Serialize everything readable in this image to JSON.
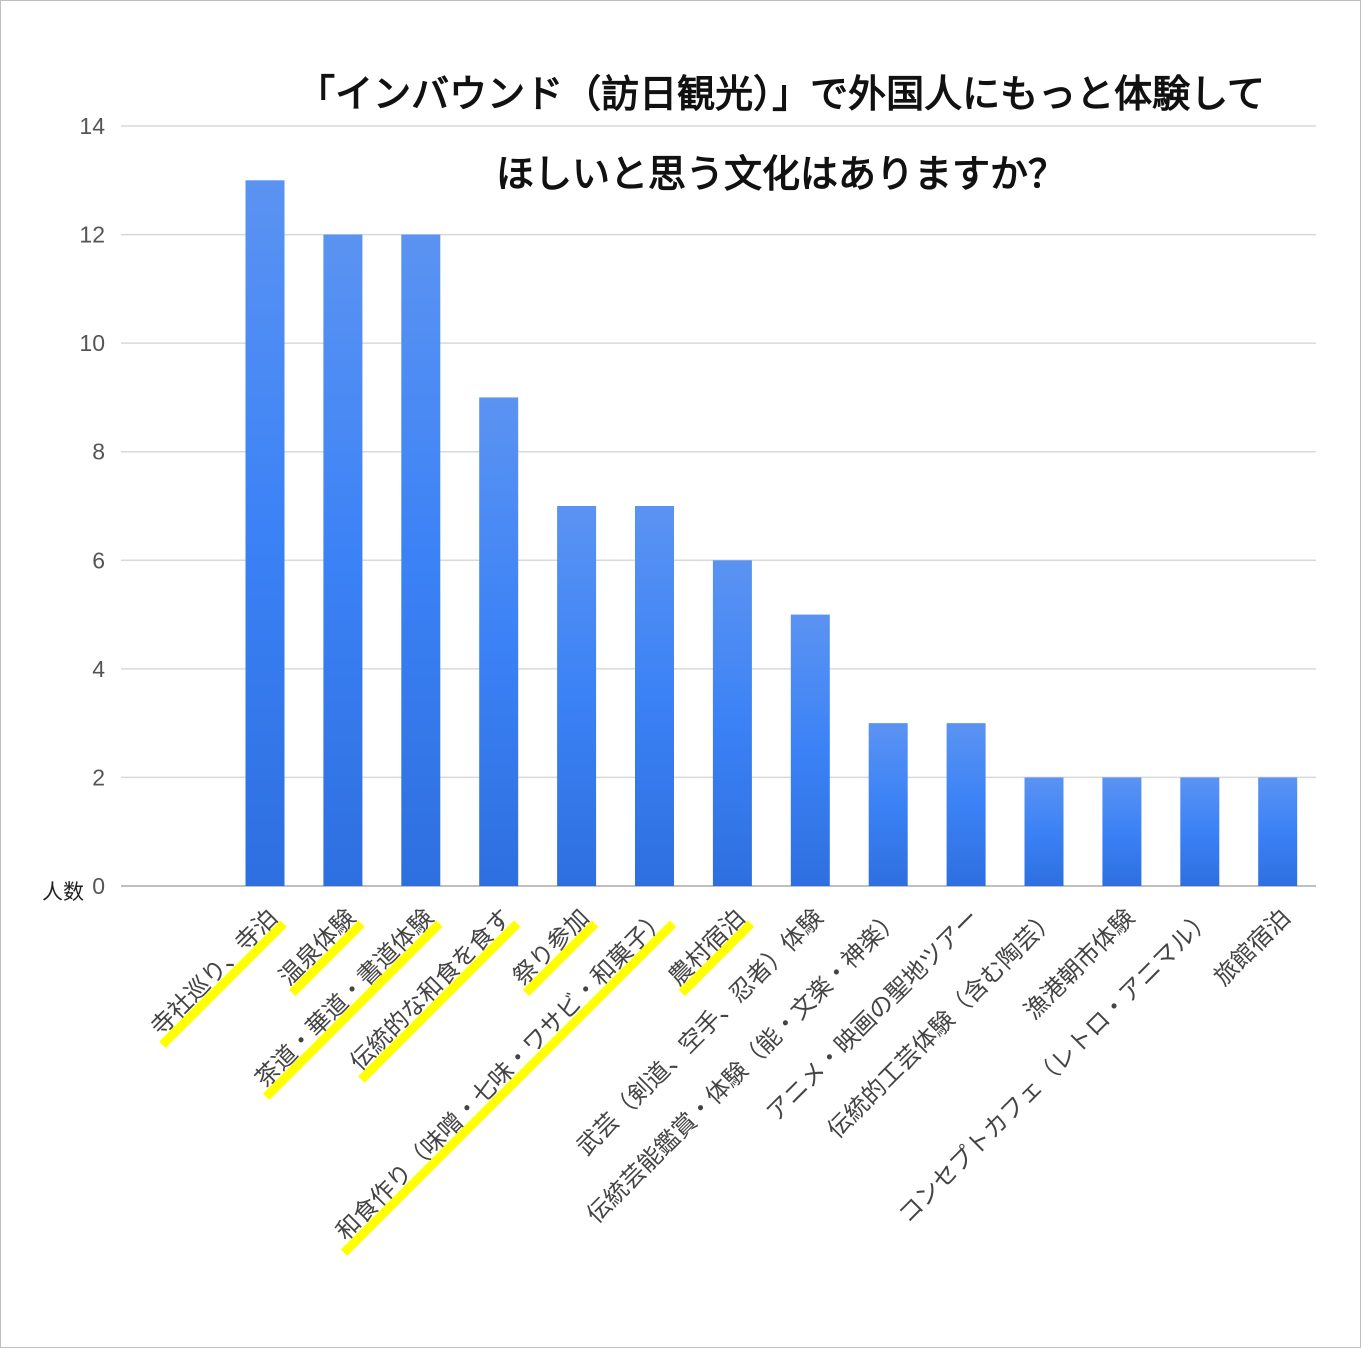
{
  "title": {
    "line1": "「インバウンド（訪日観光）」で外国人にもっと体験して",
    "line2": "ほしいと思う文化はありますか？"
  },
  "chart_data": {
    "type": "bar",
    "title": "「インバウンド（訪日観光）」で外国人にもっと体験してほしいと思う文化はありますか？",
    "ylabel": "人数",
    "ylim": [
      0,
      14
    ],
    "yticks": [
      0,
      2,
      4,
      6,
      8,
      10,
      12,
      14
    ],
    "grid": true,
    "categories": [
      "寺社巡り、寺泊",
      "温泉体験",
      "茶道・華道・書道体験",
      "伝統的な和食を食す",
      "祭り参加",
      "和食作り（味噌・七味・ワサビ・和菓子）",
      "農村宿泊",
      "武芸（剣道、空手、忍者）体験",
      "伝統芸能鑑賞・体験（能・文楽・神楽）",
      "アニメ・映画の聖地ツアー",
      "伝統的工芸体験（含む陶芸）",
      "漁港朝市体験",
      "コンセプトカフェ（レトロ・アニマル）",
      "旅館宿泊"
    ],
    "values": [
      13,
      12,
      12,
      9,
      7,
      7,
      6,
      5,
      3,
      3,
      2,
      2,
      2,
      2
    ],
    "highlighted": [
      true,
      true,
      true,
      true,
      true,
      true,
      true,
      false,
      false,
      false,
      false,
      false,
      false,
      false
    ],
    "colors": {
      "bar_top": "#5b93f2",
      "bar_mid": "#3b82f6",
      "bar_bottom": "#2e6fe0",
      "highlight": "#ffff00",
      "grid": "#d9d9d9",
      "axis": "#bfbfbf"
    }
  }
}
